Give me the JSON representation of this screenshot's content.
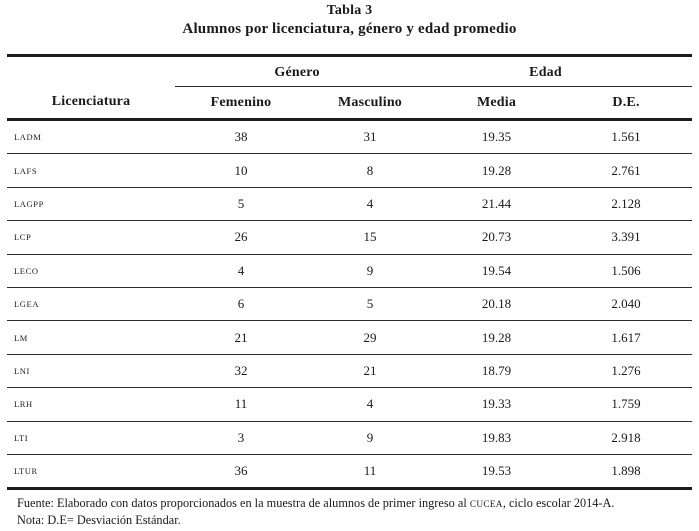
{
  "table": {
    "title": "Tabla 3",
    "subtitle": "Alumnos por licenciatura, género y edad promedio",
    "column_groups": [
      "Género",
      "Edad"
    ],
    "columns": [
      "Licenciatura",
      "Femenino",
      "Masculino",
      "Media",
      "D.E."
    ],
    "rows": [
      {
        "licenciatura": "LADM",
        "femenino": "38",
        "masculino": "31",
        "media": "19.35",
        "de": "1.561"
      },
      {
        "licenciatura": "LAFS",
        "femenino": "10",
        "masculino": "8",
        "media": "19.28",
        "de": "2.761"
      },
      {
        "licenciatura": "LAGPP",
        "femenino": "5",
        "masculino": "4",
        "media": "21.44",
        "de": "2.128"
      },
      {
        "licenciatura": "LCP",
        "femenino": "26",
        "masculino": "15",
        "media": "20.73",
        "de": "3.391"
      },
      {
        "licenciatura": "LECO",
        "femenino": "4",
        "masculino": "9",
        "media": "19.54",
        "de": "1.506"
      },
      {
        "licenciatura": "LGEA",
        "femenino": "6",
        "masculino": "5",
        "media": "20.18",
        "de": "2.040"
      },
      {
        "licenciatura": "LM",
        "femenino": "21",
        "masculino": "29",
        "media": "19.28",
        "de": "1.617"
      },
      {
        "licenciatura": "LNI",
        "femenino": "32",
        "masculino": "21",
        "media": "18.79",
        "de": "1.276"
      },
      {
        "licenciatura": "LRH",
        "femenino": "11",
        "masculino": "4",
        "media": "19.33",
        "de": "1.759"
      },
      {
        "licenciatura": "LTI",
        "femenino": "3",
        "masculino": "9",
        "media": "19.83",
        "de": "2.918"
      },
      {
        "licenciatura": "LTUR",
        "femenino": "36",
        "masculino": "11",
        "media": "19.53",
        "de": "1.898"
      }
    ],
    "footnotes": {
      "fuente_prefix": "Fuente: Elaborado con datos proporcionados en la muestra de alumnos de primer ingreso al ",
      "fuente_acronym": "cucea",
      "fuente_suffix": ", ciclo escolar 2014-A.",
      "nota": "Nota: D.E= Desviación Estándar."
    }
  }
}
